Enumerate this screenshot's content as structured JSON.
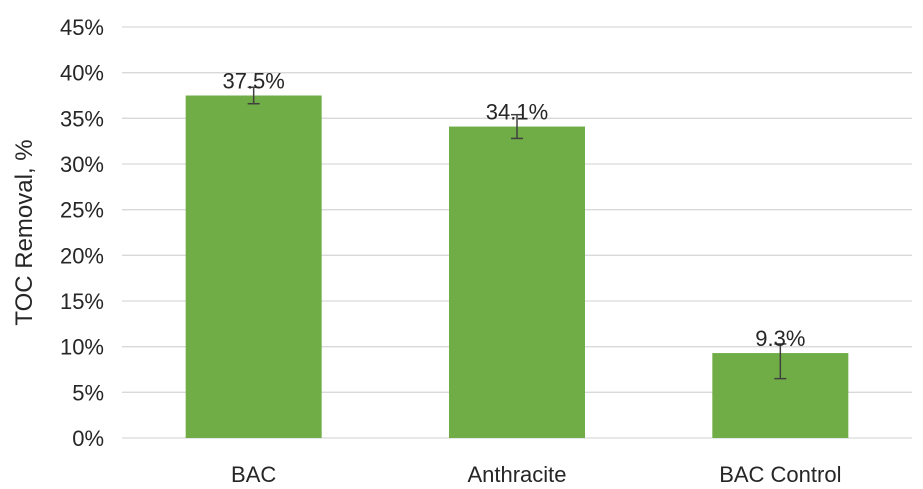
{
  "chart_data": {
    "type": "bar",
    "categories": [
      "BAC",
      "Anthracite",
      "BAC Control"
    ],
    "values": [
      37.5,
      34.1,
      9.3
    ],
    "value_labels": [
      "37.5%",
      "34.1%",
      "9.3%"
    ],
    "error_bars": [
      {
        "low": 36.6,
        "high": 38.4
      },
      {
        "low": 32.8,
        "high": 35.4
      },
      {
        "low": 6.5,
        "high": 10.3
      }
    ],
    "ylabel": "TOC Removal, %",
    "ylim": [
      0,
      45
    ],
    "yticks": [
      0,
      5,
      10,
      15,
      20,
      25,
      30,
      35,
      40,
      45
    ],
    "ytick_labels": [
      "0%",
      "5%",
      "10%",
      "15%",
      "20%",
      "25%",
      "30%",
      "35%",
      "40%",
      "45%"
    ],
    "bar_color": "#70ad47",
    "grid": true,
    "legend": "none"
  }
}
